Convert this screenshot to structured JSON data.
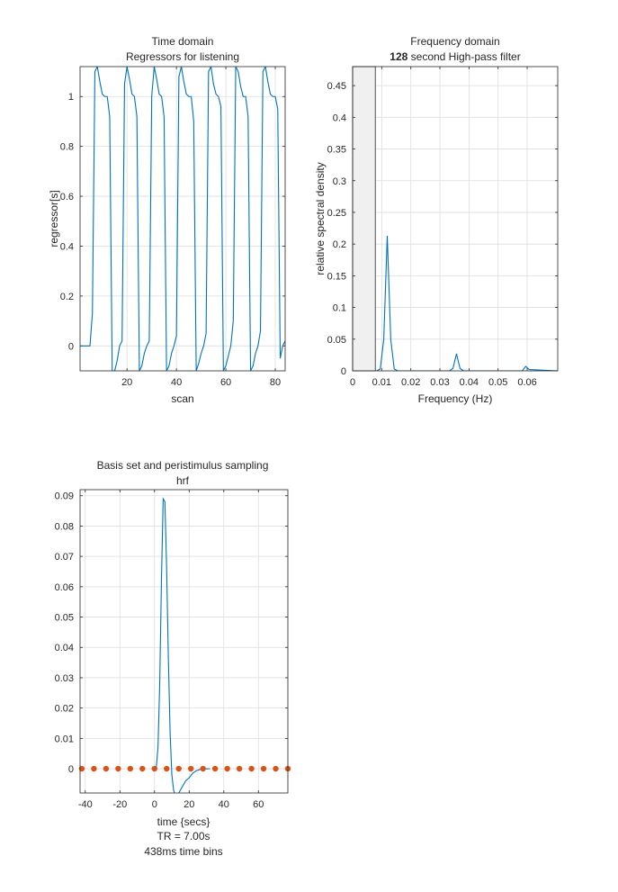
{
  "chart_data": [
    {
      "type": "line",
      "title": "Time domain",
      "subtitle": "Regressors for listening",
      "xlabel": "scan",
      "ylabel": "regressor[s]",
      "xlim": [
        1,
        84
      ],
      "ylim": [
        -0.1,
        1.12
      ],
      "xticks": [
        20,
        40,
        60,
        80
      ],
      "yticks": [
        0,
        0.2,
        0.4,
        0.6,
        0.8,
        1
      ],
      "ytick_labels": [
        "0",
        "0.2",
        "0.4",
        "0.6",
        "0.8",
        "1"
      ],
      "grid": true,
      "color": "#0072bd",
      "series": [
        {
          "x": [
            1,
            5,
            6,
            7,
            8,
            9,
            10,
            11,
            12,
            13,
            14,
            15,
            16,
            17,
            18,
            19,
            20,
            21,
            22,
            23,
            24,
            25,
            26,
            27,
            28,
            29,
            30,
            31,
            32,
            33,
            34,
            35,
            36,
            37,
            38,
            39,
            40,
            41,
            42,
            43,
            44,
            45,
            46,
            47,
            48,
            49,
            50,
            51,
            52,
            53,
            54,
            55,
            56,
            57,
            58,
            59,
            60,
            61,
            62,
            63,
            64,
            65,
            66,
            67,
            68,
            69,
            70,
            71,
            72,
            73,
            74,
            75,
            76,
            77,
            78,
            79,
            80,
            81,
            82,
            83,
            84
          ],
          "y": [
            0,
            0,
            0.13,
            1.1,
            1.12,
            1.06,
            1.01,
            1.0,
            1.0,
            0.92,
            -0.1,
            -0.1,
            -0.06,
            0,
            0.02,
            1.05,
            1.12,
            1.07,
            1.01,
            1.0,
            0.92,
            -0.1,
            -0.08,
            -0.03,
            0,
            0.02,
            1.0,
            1.12,
            1.07,
            1.01,
            1.0,
            0.92,
            -0.1,
            -0.08,
            -0.03,
            0,
            0.04,
            1.08,
            1.12,
            1.06,
            1.01,
            1.0,
            1.0,
            0.9,
            -0.1,
            -0.07,
            -0.03,
            0,
            0.05,
            1.1,
            1.12,
            1.05,
            1.01,
            1.0,
            0.96,
            -0.1,
            -0.08,
            -0.04,
            0,
            0.1,
            1.12,
            1.1,
            1.04,
            1.0,
            1.0,
            0.92,
            -0.1,
            -0.08,
            -0.03,
            0,
            0.06,
            1.1,
            1.12,
            1.06,
            1.01,
            1.0,
            1.0,
            0.95,
            -0.05,
            0.0,
            0.02
          ]
        }
      ]
    },
    {
      "type": "line",
      "title": "Frequency domain",
      "subtitle_bold": "128",
      "subtitle_rest": " second High-pass filter",
      "xlabel": "Frequency (Hz)",
      "ylabel": "relative spectral density",
      "xlim": [
        0,
        0.0705
      ],
      "ylim": [
        0,
        0.48
      ],
      "xticks": [
        0,
        0.01,
        0.02,
        0.03,
        0.04,
        0.05,
        0.06
      ],
      "xtick_labels": [
        "0",
        "0.01",
        "0.02",
        "0.03",
        "0.04",
        "0.05",
        "0.06"
      ],
      "yticks": [
        0,
        0.05,
        0.1,
        0.15,
        0.2,
        0.25,
        0.3,
        0.35,
        0.4,
        0.45
      ],
      "ytick_labels": [
        "0",
        "0.05",
        "0.1",
        "0.15",
        "0.2",
        "0.25",
        "0.3",
        "0.35",
        "0.4",
        "0.45"
      ],
      "highpass_cutoff": 0.0078,
      "grid": true,
      "color": "#0072bd",
      "series": [
        {
          "x": [
            0,
            0.0083,
            0.0095,
            0.0107,
            0.0119,
            0.0131,
            0.0143,
            0.0155,
            0.0333,
            0.0345,
            0.0357,
            0.0369,
            0.0381,
            0.0583,
            0.0595,
            0.0607,
            0.0705
          ],
          "y": [
            0,
            0,
            0.003,
            0.05,
            0.213,
            0.05,
            0.003,
            0,
            0,
            0.004,
            0.027,
            0.004,
            0,
            0,
            0.007,
            0.002,
            0
          ]
        }
      ]
    },
    {
      "type": "line",
      "title": "Basis set and peristimulus sampling",
      "subtitle": "hrf",
      "xlabel": "time {secs}",
      "caption1": "TR = 7.00s",
      "caption2": "438ms time bins",
      "xlim": [
        -43,
        77
      ],
      "ylim": [
        -0.008,
        0.092
      ],
      "xticks": [
        -40,
        -20,
        0,
        20,
        40,
        60
      ],
      "xtick_labels": [
        "-40",
        "-20",
        "0",
        "20",
        "40",
        "60"
      ],
      "yticks": [
        0,
        0.01,
        0.02,
        0.03,
        0.04,
        0.05,
        0.06,
        0.07,
        0.08,
        0.09
      ],
      "ytick_labels": [
        "0",
        "0.01",
        "0.02",
        "0.03",
        "0.04",
        "0.05",
        "0.06",
        "0.07",
        "0.08",
        "0.09"
      ],
      "grid": true,
      "color": "#0072bd",
      "sample_color": "#d95319",
      "series": [
        {
          "x": [
            0,
            1,
            2,
            3,
            4,
            5,
            6,
            7,
            8,
            9,
            10,
            11,
            12,
            13,
            14,
            15,
            16,
            18,
            20,
            22,
            24,
            26,
            28,
            32
          ],
          "y": [
            0,
            0.0004,
            0.007,
            0.028,
            0.062,
            0.089,
            0.088,
            0.066,
            0.036,
            0.012,
            -0.002,
            -0.007,
            -0.009,
            -0.009,
            -0.008,
            -0.007,
            -0.006,
            -0.004,
            -0.003,
            -0.0015,
            -0.0007,
            -0.0003,
            -0.0001,
            0
          ]
        }
      ],
      "samples": {
        "x": [
          -42,
          -35,
          -28,
          -21,
          -14,
          -7,
          0,
          7,
          14,
          21,
          28,
          35,
          42,
          49,
          56,
          63,
          70,
          77
        ],
        "y": [
          0,
          0,
          0,
          0,
          0,
          0,
          0,
          0,
          0,
          0,
          0,
          0,
          0,
          0,
          0,
          0,
          0,
          0
        ]
      }
    }
  ]
}
